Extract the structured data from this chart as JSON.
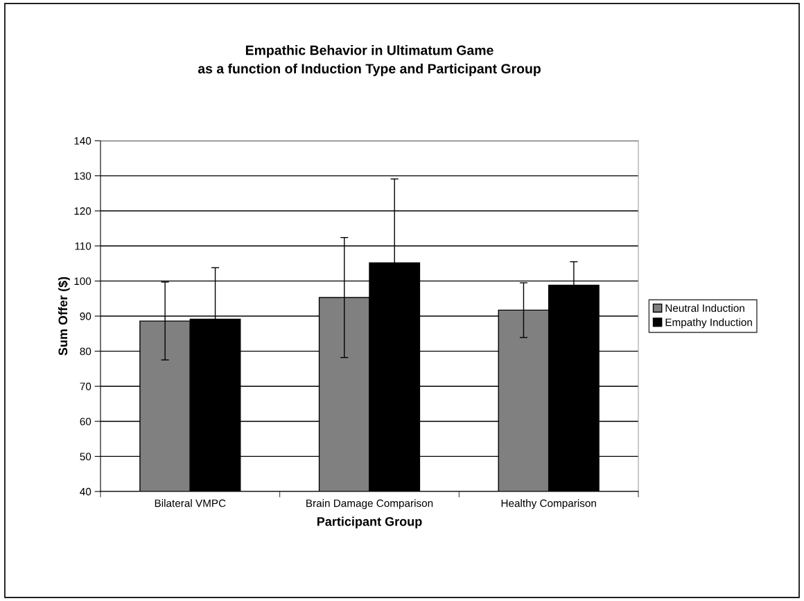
{
  "chart_data": {
    "type": "bar",
    "title": "Empathic Behavior in Ultimatum Game\nas a function of Induction Type and Participant Group",
    "xlabel": "Participant Group",
    "ylabel": "Sum Offer ($)",
    "categories": [
      "Bilateral VMPC",
      "Brain Damage Comparison",
      "Healthy Comparison"
    ],
    "series": [
      {
        "name": "Neutral Induction",
        "color": "#808080",
        "values": [
          88.6,
          95.3,
          91.7
        ],
        "errors": [
          11.1,
          17.1,
          7.8
        ]
      },
      {
        "name": "Empathy Induction",
        "color": "#000000",
        "values": [
          89.1,
          105.2,
          98.8
        ],
        "errors": [
          14.7,
          23.9,
          6.7
        ]
      }
    ],
    "ylim": [
      40,
      140
    ],
    "yticks": [
      40,
      50,
      60,
      70,
      80,
      90,
      100,
      110,
      120,
      130,
      140
    ],
    "grid": "y",
    "legend": "right"
  }
}
